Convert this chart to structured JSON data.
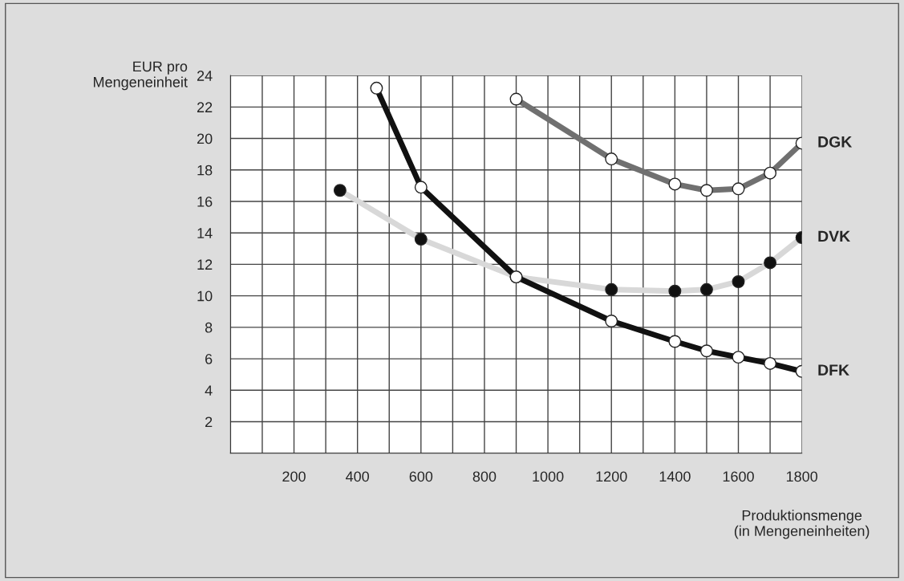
{
  "chart_data": {
    "type": "line",
    "ylabel": "EUR pro\nMengeneinheit",
    "xlabel": "Produktionsmenge\n(in Mengeneinheiten)",
    "series": [
      {
        "name": "DGK",
        "color": "#707070",
        "x": [
          900,
          1200,
          1400,
          1500,
          1600,
          1700,
          1800
        ],
        "values": [
          22.5,
          18.7,
          17.1,
          16.7,
          16.8,
          17.8,
          19.7
        ]
      },
      {
        "name": "DVK",
        "color": "#d8d8d8",
        "x": [
          345,
          600,
          900,
          1200,
          1400,
          1500,
          1600,
          1700,
          1800
        ],
        "values": [
          16.7,
          13.6,
          11.2,
          10.4,
          10.3,
          10.4,
          10.9,
          12.1,
          13.7
        ]
      },
      {
        "name": "DFK",
        "color": "#111111",
        "x": [
          460,
          600,
          900,
          1200,
          1400,
          1500,
          1600,
          1700,
          1800
        ],
        "values": [
          23.2,
          16.9,
          11.2,
          8.4,
          7.1,
          6.5,
          6.1,
          5.7,
          5.2
        ]
      }
    ],
    "xlim": [
      0,
      1800
    ],
    "xticks": [
      {
        "value": 0,
        "label": null
      },
      {
        "value": 100,
        "label": null
      },
      200,
      {
        "value": 300,
        "label": null
      },
      400,
      {
        "value": 500,
        "label": null
      },
      600,
      {
        "value": 700,
        "label": null
      },
      800,
      {
        "value": 900,
        "label": null
      },
      1000,
      {
        "value": 1100,
        "label": null
      },
      1200,
      {
        "value": 1300,
        "label": null
      },
      1400,
      {
        "value": 1500,
        "label": null
      },
      1600,
      {
        "value": 1700,
        "label": null
      },
      1800
    ],
    "ylim": [
      0,
      24
    ],
    "yticks": [
      {
        "value": 0,
        "label": null
      },
      2,
      4,
      6,
      8,
      10,
      12,
      14,
      16,
      18,
      20,
      22,
      24
    ],
    "grid": true,
    "legend": false,
    "marker": "circle",
    "line_style": "solid"
  }
}
